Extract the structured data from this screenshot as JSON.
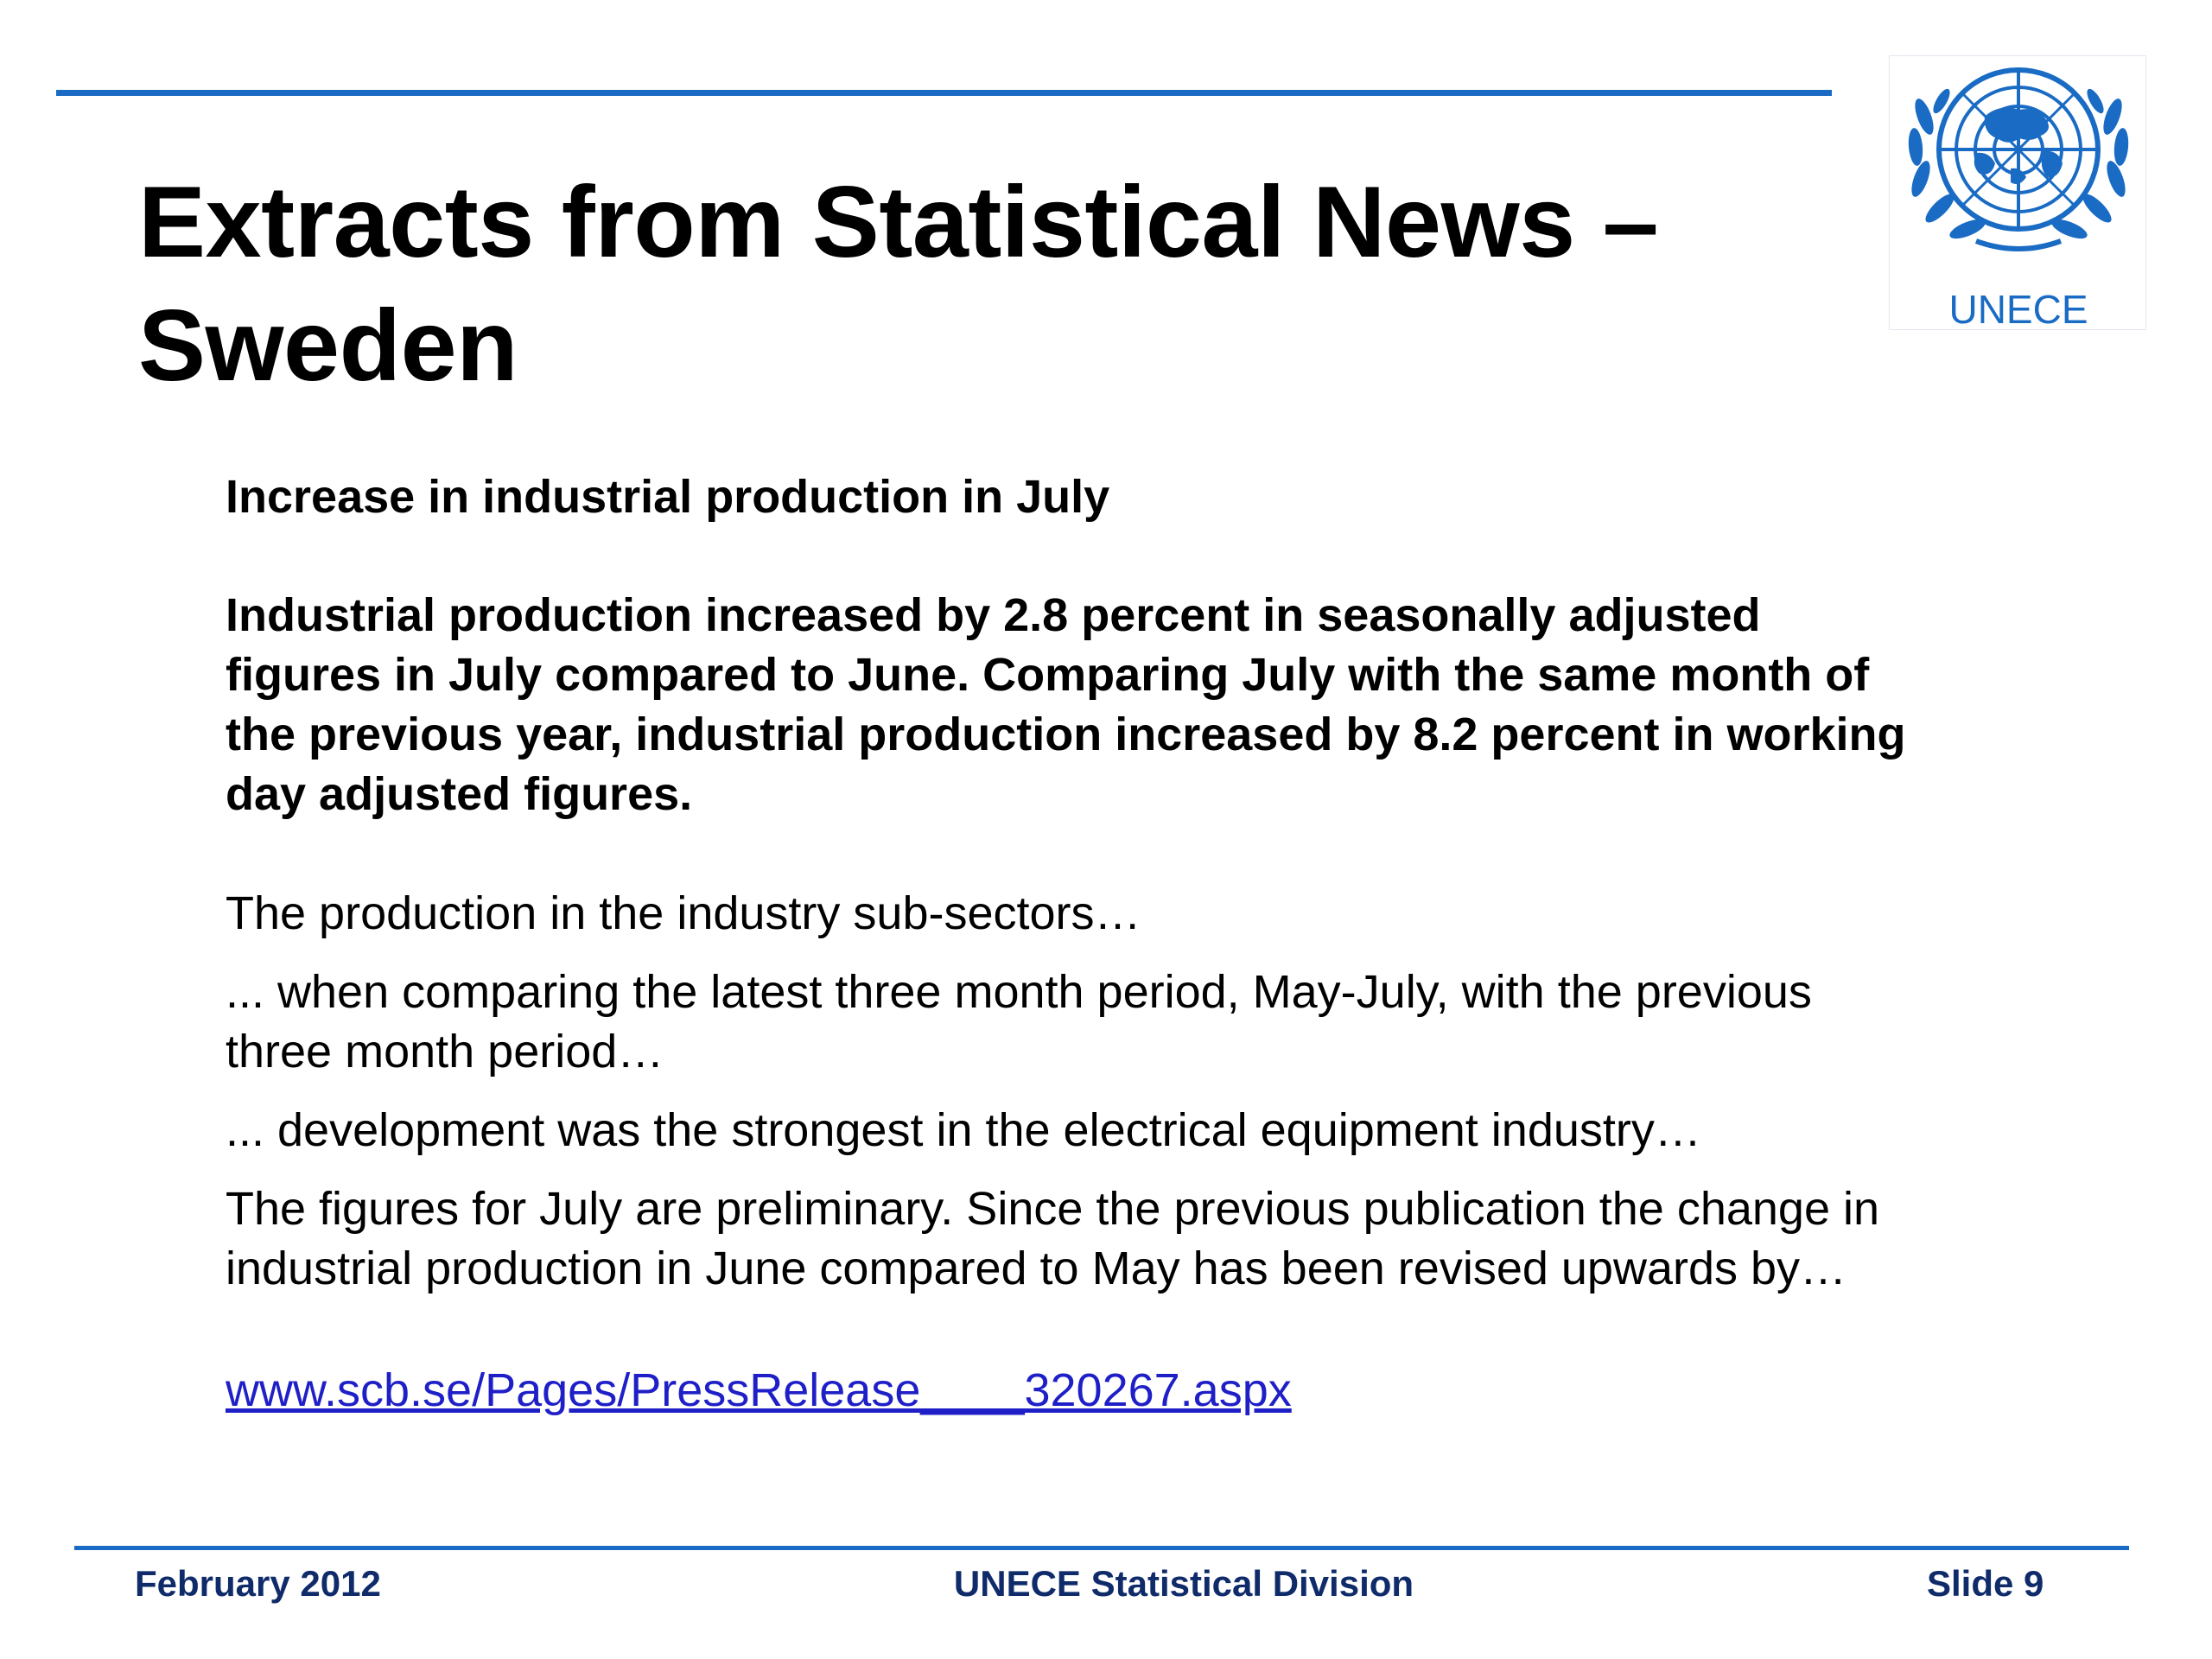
{
  "slide": {
    "title_line1": "Extracts from Statistical News –",
    "title_line2": "Sweden",
    "logo_text": "UNECE"
  },
  "content": {
    "headline": "Increase in industrial production in July",
    "lead": "Industrial production increased by 2.8 percent in seasonally adjusted figures in July compared to June. Comparing July with the same month of the previous year, industrial production increased by 8.2 percent in working day adjusted figures.",
    "paragraphs": [
      "The production in the industry sub-sectors…",
      "... when comparing the latest three month period, May-July, with the previous three month period…",
      "... development was the strongest in the electrical equipment industry…",
      "The figures for July are preliminary. Since the previous publication the change in industrial production in June compared to May has been revised upwards by…"
    ],
    "link_text": "www.scb.se/Pages/PressRelease____320267.aspx"
  },
  "footer": {
    "date": "February 2012",
    "organization": "UNECE Statistical Division",
    "slide_number": "Slide 9"
  },
  "colors": {
    "accent_blue": "#1a6bc4",
    "footer_text": "#0f2b6a",
    "link": "#1f1fc8"
  }
}
